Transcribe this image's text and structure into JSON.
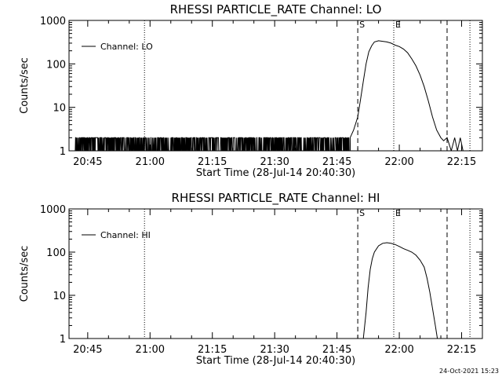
{
  "footer": {
    "timestamp": "24-Oct-2021 15:23"
  },
  "chart_data": [
    {
      "type": "line",
      "title": "RHESSI PARTICLE_RATE Channel: LO",
      "xlabel": "Start Time (28-Jul-14 20:40:30)",
      "ylabel": "Counts/sec",
      "yscale": "log",
      "ylim": [
        1,
        1000
      ],
      "xlim": [
        "20:40:30",
        "22:20:00"
      ],
      "x_ticks": [
        "20:45",
        "21:00",
        "21:15",
        "21:30",
        "21:45",
        "22:00",
        "22:15"
      ],
      "y_ticks": [
        "1",
        "10",
        "100",
        "1000"
      ],
      "legend": {
        "position": "top-left",
        "entries": [
          "Channel: LO"
        ]
      },
      "markers": [
        {
          "label": "S",
          "time": "21:50:00",
          "style": "dashed"
        },
        {
          "label": "E",
          "time": "21:58:40",
          "style": "dotted"
        }
      ],
      "reference_lines": [
        {
          "time": "20:58:40",
          "style": "dotted"
        },
        {
          "time": "22:11:30",
          "style": "dashed"
        },
        {
          "time": "22:17:00",
          "style": "dotted"
        }
      ],
      "series": [
        {
          "name": "Channel: LO",
          "noise": {
            "start": "20:42:00",
            "end": "21:48:10",
            "low": 1,
            "high": 2
          },
          "x": [
            "21:48:10",
            "21:49:00",
            "21:50:00",
            "21:50:40",
            "21:51:20",
            "21:52:00",
            "21:52:40",
            "21:53:20",
            "21:54:00",
            "21:55:00",
            "21:56:00",
            "21:57:00",
            "21:58:00",
            "21:59:00",
            "22:00:00",
            "22:01:00",
            "22:02:00",
            "22:03:00",
            "22:04:00",
            "22:05:00",
            "22:06:00",
            "22:07:00",
            "22:08:00",
            "22:09:00",
            "22:10:00",
            "22:10:40",
            "22:11:30",
            "22:12:30",
            "22:13:20",
            "22:14:00",
            "22:14:40",
            "22:15:20",
            "22:16:00",
            "22:16:30"
          ],
          "y": [
            2,
            3,
            6,
            15,
            40,
            100,
            190,
            260,
            320,
            340,
            330,
            320,
            300,
            270,
            250,
            220,
            180,
            130,
            90,
            55,
            30,
            14,
            6,
            3,
            2,
            1.7,
            2,
            1,
            2,
            1,
            2,
            1,
            1,
            1
          ]
        }
      ]
    },
    {
      "type": "line",
      "title": "RHESSI PARTICLE_RATE Channel: HI",
      "xlabel": "Start Time (28-Jul-14 20:40:30)",
      "ylabel": "Counts/sec",
      "yscale": "log",
      "ylim": [
        1,
        1000
      ],
      "xlim": [
        "20:40:30",
        "22:20:00"
      ],
      "x_ticks": [
        "20:45",
        "21:00",
        "21:15",
        "21:30",
        "21:45",
        "22:00",
        "22:15"
      ],
      "y_ticks": [
        "1",
        "10",
        "100",
        "1000"
      ],
      "legend": {
        "position": "top-left",
        "entries": [
          "Channel: HI"
        ]
      },
      "markers": [
        {
          "label": "S",
          "time": "21:50:00",
          "style": "dashed"
        },
        {
          "label": "E",
          "time": "21:58:40",
          "style": "dotted"
        }
      ],
      "reference_lines": [
        {
          "time": "20:58:40",
          "style": "dotted"
        },
        {
          "time": "22:11:30",
          "style": "dashed"
        },
        {
          "time": "22:17:00",
          "style": "dotted"
        }
      ],
      "series": [
        {
          "name": "Channel: HI",
          "noise": null,
          "x": [
            "21:51:20",
            "21:52:00",
            "21:52:30",
            "21:53:00",
            "21:53:30",
            "21:54:00",
            "21:55:00",
            "21:56:00",
            "21:57:00",
            "21:58:00",
            "21:59:00",
            "22:00:00",
            "22:01:00",
            "22:02:00",
            "22:03:00",
            "22:04:00",
            "22:05:00",
            "22:06:00",
            "22:06:40",
            "22:07:20",
            "22:08:00",
            "22:08:40",
            "22:09:10"
          ],
          "y": [
            1,
            4,
            15,
            40,
            70,
            100,
            140,
            160,
            165,
            160,
            150,
            135,
            120,
            110,
            100,
            85,
            65,
            45,
            25,
            12,
            5,
            2,
            1
          ]
        }
      ]
    }
  ]
}
